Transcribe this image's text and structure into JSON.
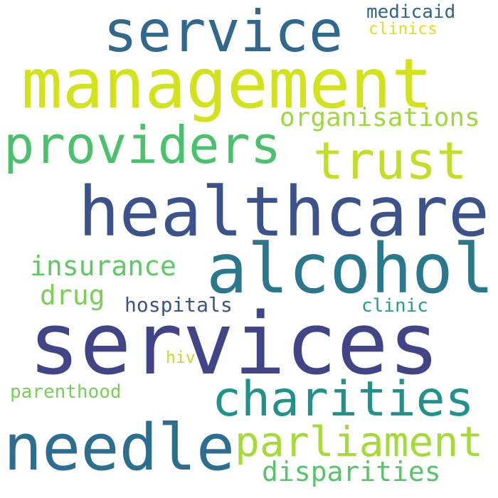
{
  "words": {
    "services": {
      "text": "services",
      "color": "#414487"
    },
    "management": {
      "text": "management",
      "color": "#d2e21b"
    },
    "healthcare": {
      "text": "healthcare",
      "color": "#3b528b"
    },
    "alcohol": {
      "text": "alcohol",
      "color": "#2a788e"
    },
    "needle": {
      "text": "needle",
      "color": "#2c6e8e"
    },
    "service": {
      "text": "service",
      "color": "#31688e"
    },
    "providers": {
      "text": "providers",
      "color": "#4ac16d"
    },
    "trust": {
      "text": "trust",
      "color": "#c0df25"
    },
    "charities": {
      "text": "charities",
      "color": "#21918c"
    },
    "parliament": {
      "text": "parliament",
      "color": "#a5db36"
    },
    "organisations": {
      "text": "organisations",
      "color": "#9dd93b"
    },
    "insurance": {
      "text": "insurance",
      "color": "#5ec962"
    },
    "disparities": {
      "text": "disparities",
      "color": "#54c568"
    },
    "drug": {
      "text": "drug",
      "color": "#7ad151"
    },
    "hospitals": {
      "text": "hospitals",
      "color": "#3b528b"
    },
    "medicaid": {
      "text": "medicaid",
      "color": "#33638d"
    },
    "clinics": {
      "text": "clinics",
      "color": "#d8e219"
    },
    "clinic": {
      "text": "clinic",
      "color": "#1fa187"
    },
    "parenthood": {
      "text": "parenthood",
      "color": "#75d054"
    },
    "hiv": {
      "text": "hiv",
      "color": "#bddf26"
    }
  }
}
